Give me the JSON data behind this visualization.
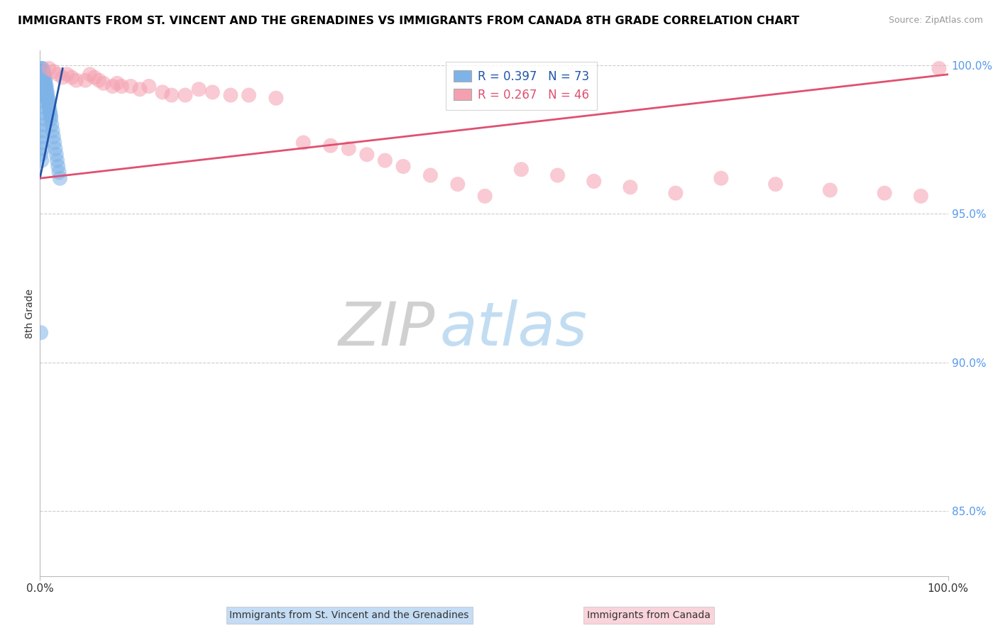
{
  "title": "IMMIGRANTS FROM ST. VINCENT AND THE GRENADINES VS IMMIGRANTS FROM CANADA 8TH GRADE CORRELATION CHART",
  "source": "Source: ZipAtlas.com",
  "ylabel": "8th Grade",
  "blue_label": "Immigrants from St. Vincent and the Grenadines",
  "pink_label": "Immigrants from Canada",
  "blue_R": 0.397,
  "blue_N": 73,
  "pink_R": 0.267,
  "pink_N": 46,
  "blue_color": "#7EB3E8",
  "pink_color": "#F5A0B0",
  "blue_line_color": "#2255AA",
  "pink_line_color": "#E05070",
  "watermark_zip": "ZIP",
  "watermark_atlas": "atlas",
  "xmin": 0.0,
  "xmax": 1.0,
  "ymin": 0.828,
  "ymax": 1.005,
  "yticks": [
    0.85,
    0.9,
    0.95,
    1.0
  ],
  "ytick_labels": [
    "85.0%",
    "90.0%",
    "95.0%",
    "100.0%"
  ],
  "blue_dots_x": [
    0.001,
    0.001,
    0.001,
    0.001,
    0.001,
    0.002,
    0.002,
    0.002,
    0.002,
    0.002,
    0.002,
    0.002,
    0.003,
    0.003,
    0.003,
    0.003,
    0.003,
    0.003,
    0.003,
    0.004,
    0.004,
    0.004,
    0.004,
    0.004,
    0.004,
    0.005,
    0.005,
    0.005,
    0.005,
    0.005,
    0.005,
    0.005,
    0.006,
    0.006,
    0.006,
    0.006,
    0.007,
    0.007,
    0.007,
    0.008,
    0.008,
    0.008,
    0.009,
    0.009,
    0.01,
    0.01,
    0.011,
    0.011,
    0.012,
    0.012,
    0.013,
    0.014,
    0.015,
    0.016,
    0.017,
    0.018,
    0.019,
    0.02,
    0.021,
    0.022,
    0.003,
    0.003,
    0.004,
    0.004,
    0.005,
    0.005,
    0.002,
    0.002,
    0.002,
    0.003,
    0.001,
    0.002,
    0.001
  ],
  "blue_dots_y": [
    0.999,
    0.998,
    0.997,
    0.996,
    0.995,
    0.999,
    0.998,
    0.997,
    0.996,
    0.995,
    0.994,
    0.993,
    0.999,
    0.998,
    0.997,
    0.996,
    0.995,
    0.994,
    0.993,
    0.998,
    0.997,
    0.996,
    0.995,
    0.994,
    0.993,
    0.997,
    0.996,
    0.995,
    0.994,
    0.993,
    0.992,
    0.991,
    0.995,
    0.994,
    0.993,
    0.992,
    0.993,
    0.992,
    0.991,
    0.991,
    0.99,
    0.989,
    0.989,
    0.988,
    0.987,
    0.986,
    0.985,
    0.984,
    0.983,
    0.982,
    0.98,
    0.978,
    0.976,
    0.974,
    0.972,
    0.97,
    0.968,
    0.966,
    0.964,
    0.962,
    0.99,
    0.988,
    0.986,
    0.984,
    0.982,
    0.98,
    0.978,
    0.976,
    0.974,
    0.972,
    0.97,
    0.968,
    0.91
  ],
  "pink_dots_x": [
    0.01,
    0.015,
    0.02,
    0.025,
    0.03,
    0.035,
    0.04,
    0.05,
    0.055,
    0.06,
    0.065,
    0.07,
    0.08,
    0.085,
    0.09,
    0.1,
    0.11,
    0.12,
    0.135,
    0.145,
    0.16,
    0.175,
    0.19,
    0.21,
    0.23,
    0.26,
    0.29,
    0.32,
    0.34,
    0.36,
    0.38,
    0.4,
    0.43,
    0.46,
    0.49,
    0.53,
    0.57,
    0.61,
    0.65,
    0.7,
    0.75,
    0.81,
    0.87,
    0.93,
    0.97,
    0.99
  ],
  "pink_dots_y": [
    0.999,
    0.998,
    0.997,
    0.996,
    0.997,
    0.996,
    0.995,
    0.995,
    0.997,
    0.996,
    0.995,
    0.994,
    0.993,
    0.994,
    0.993,
    0.993,
    0.992,
    0.993,
    0.991,
    0.99,
    0.99,
    0.992,
    0.991,
    0.99,
    0.99,
    0.989,
    0.974,
    0.973,
    0.972,
    0.97,
    0.968,
    0.966,
    0.963,
    0.96,
    0.956,
    0.965,
    0.963,
    0.961,
    0.959,
    0.957,
    0.962,
    0.96,
    0.958,
    0.957,
    0.956,
    0.999
  ],
  "blue_trend_x0": 0.0,
  "blue_trend_x1": 0.025,
  "blue_trend_y0": 0.962,
  "blue_trend_y1": 0.999,
  "pink_trend_x0": 0.0,
  "pink_trend_x1": 1.0,
  "pink_trend_y0": 0.962,
  "pink_trend_y1": 0.997
}
